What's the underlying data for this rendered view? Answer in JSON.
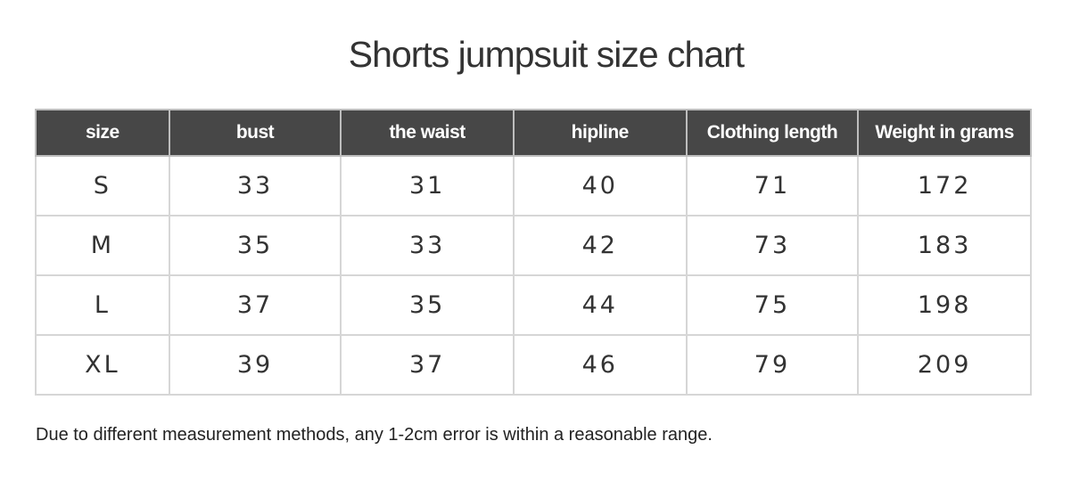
{
  "title": "Shorts jumpsuit size chart",
  "table": {
    "headers": [
      "size",
      "bust",
      "the waist",
      "hipline",
      "Clothing length",
      "Weight in grams"
    ],
    "rows": [
      [
        "S",
        "33",
        "31",
        "40",
        "71",
        "172"
      ],
      [
        "M",
        "35",
        "33",
        "42",
        "73",
        "183"
      ],
      [
        "L",
        "37",
        "35",
        "44",
        "75",
        "198"
      ],
      [
        "XL",
        "39",
        "37",
        "46",
        "79",
        "209"
      ]
    ]
  },
  "note": "Due to different measurement methods, any 1-2cm error is within a reasonable range.",
  "colors": {
    "header_bg": "#474747",
    "header_text": "#ffffff",
    "border": "#d6d6d6"
  }
}
